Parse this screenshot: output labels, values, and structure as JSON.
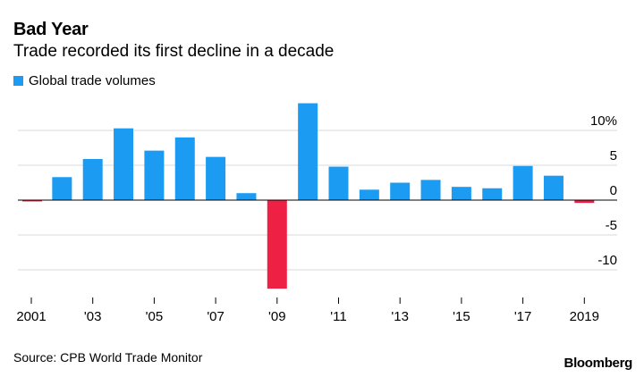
{
  "header": {
    "title": "Bad Year",
    "subtitle": "Trade recorded its first decline in a decade"
  },
  "legend": {
    "label": "Global trade volumes",
    "color": "#1b9cf2"
  },
  "footer": {
    "source": "Source: CPB World Trade Monitor",
    "brand": "Bloomberg"
  },
  "chart_data": {
    "type": "bar",
    "title": "Bad Year",
    "subtitle": "Trade recorded its first decline in a decade",
    "categories": [
      "2001",
      "2002",
      "2003",
      "2004",
      "2005",
      "2006",
      "2007",
      "2008",
      "2009",
      "2010",
      "2011",
      "2012",
      "2013",
      "2014",
      "2015",
      "2016",
      "2017",
      "2018",
      "2019"
    ],
    "series": [
      {
        "name": "Global trade volumes",
        "values": [
          -0.1,
          3.3,
          5.9,
          10.3,
          7.1,
          9.0,
          6.2,
          1.0,
          -12.7,
          13.9,
          4.8,
          1.5,
          2.5,
          2.9,
          1.9,
          1.7,
          4.9,
          3.5,
          -0.4
        ]
      }
    ],
    "x_tick_labels": [
      "2001",
      "'03",
      "'05",
      "'07",
      "'09",
      "'11",
      "'13",
      "'15",
      "'17",
      "2019"
    ],
    "x_tick_categories": [
      "2001",
      "2003",
      "2005",
      "2007",
      "2009",
      "2011",
      "2013",
      "2015",
      "2017",
      "2019"
    ],
    "y_ticks": [
      10,
      5,
      0,
      -5,
      -10
    ],
    "y_tick_labels": [
      "10%",
      "5",
      "0",
      "-5",
      "-10"
    ],
    "ylim": [
      -13,
      14
    ],
    "positive_color": "#1b9cf2",
    "negative_color": "#ee2043",
    "grid": true,
    "y_axis_position": "right",
    "legend_position": "top-left"
  }
}
